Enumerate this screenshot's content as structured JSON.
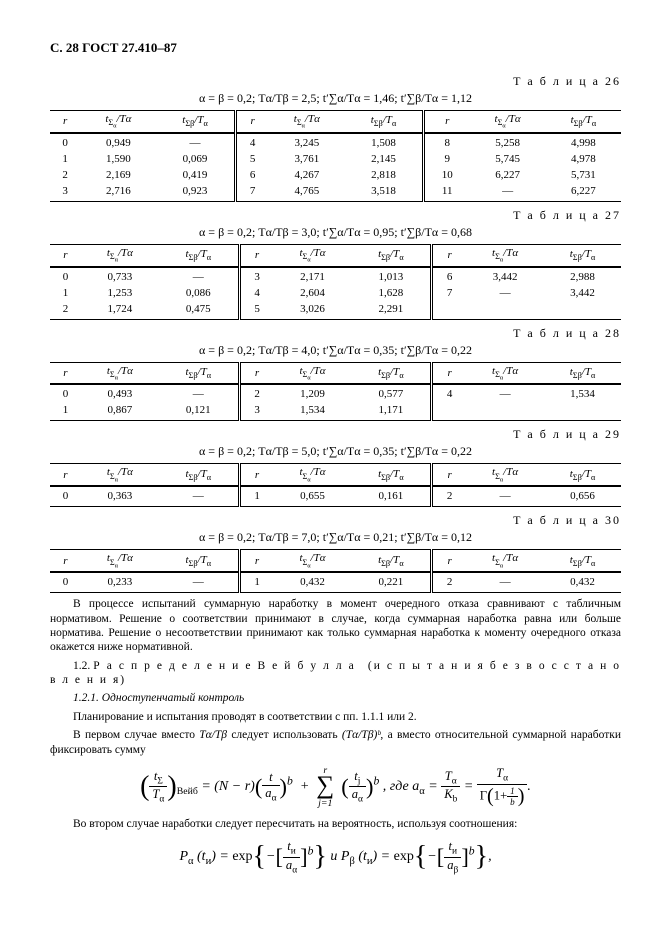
{
  "page_header": "С. 28 ГОСТ 27.410–87",
  "col_headers": {
    "r": "r",
    "a": "t∑α/Tα",
    "b": "t∑β/Tα"
  },
  "tables": [
    {
      "label": "Т а б л и ц а   26",
      "caption": "α = β = 0,2; Tα/Tβ = 2,5; t′∑α/Tα = 1,46; t′∑β/Tα = 1,12",
      "rows": [
        [
          "0",
          "0,949",
          "—",
          "4",
          "3,245",
          "1,508",
          "8",
          "5,258",
          "4,998"
        ],
        [
          "1",
          "1,590",
          "0,069",
          "5",
          "3,761",
          "2,145",
          "9",
          "5,745",
          "4,978"
        ],
        [
          "2",
          "2,169",
          "0,419",
          "6",
          "4,267",
          "2,818",
          "10",
          "6,227",
          "5,731"
        ],
        [
          "3",
          "2,716",
          "0,923",
          "7",
          "4,765",
          "3,518",
          "11",
          "—",
          "6,227"
        ]
      ]
    },
    {
      "label": "Т а б л и ц а   27",
      "caption": "α = β = 0,2; Tα/Tβ = 3,0; t′∑α/Tα = 0,95; t′∑β/Tα = 0,68",
      "rows": [
        [
          "0",
          "0,733",
          "—",
          "3",
          "2,171",
          "1,013",
          "6",
          "3,442",
          "2,988"
        ],
        [
          "1",
          "1,253",
          "0,086",
          "4",
          "2,604",
          "1,628",
          "7",
          "—",
          "3,442"
        ],
        [
          "2",
          "1,724",
          "0,475",
          "5",
          "3,026",
          "2,291",
          "",
          "",
          ""
        ]
      ]
    },
    {
      "label": "Т а б л и ц а   28",
      "caption": "α = β = 0,2; Tα/Tβ = 4,0; t′∑α/Tα = 0,35; t′∑β/Tα = 0,22",
      "rows": [
        [
          "0",
          "0,493",
          "—",
          "2",
          "1,209",
          "0,577",
          "4",
          "—",
          "1,534"
        ],
        [
          "1",
          "0,867",
          "0,121",
          "3",
          "1,534",
          "1,171",
          "",
          "",
          ""
        ]
      ]
    },
    {
      "label": "Т а б л и ц а   29",
      "caption": "α = β = 0,2; Tα/Tβ = 5,0; t′∑α/Tα = 0,35; t′∑β/Tα = 0,22",
      "rows": [
        [
          "0",
          "0,363",
          "—",
          "1",
          "0,655",
          "0,161",
          "2",
          "—",
          "0,656"
        ]
      ]
    },
    {
      "label": "Т а б л и ц а   30",
      "caption": "α = β = 0,2; Tα/Tβ = 7,0; t′∑α/Tα = 0,21; t′∑β/Tα = 0,12",
      "rows": [
        [
          "0",
          "0,233",
          "—",
          "1",
          "0,432",
          "0,221",
          "2",
          "—",
          "0,432"
        ]
      ]
    }
  ],
  "para1": "В процессе испытаний суммарную наработку в момент очередного отказа сравнивают с табличным нормативом. Решение о соответствии принимают в случае, когда суммарная наработка равна или больше норматива. Решение о несоответствии принимают как только суммарная наработка к моменту очередного отказа окажется ниже нормативной.",
  "sec12_num": "1.2.",
  "sec12_a": "Р а с п р е д е л е н и е   В е й б у л л а",
  "sec12_b": "(и с п ы т а н и я   б е з   в о с с т а н о в л е н и я)",
  "sec121": "1.2.1. Одноступенчатый контроль",
  "para2": "Планирование и испытания проводят в соответствии с пп. 1.1.1 или 2.",
  "para3a": "В первом случае вместо  ",
  "para3b": "Tα/Tβ",
  "para3c": "  следует использовать ",
  "para3d": "(Tα/Tβ)ᵇ",
  "para3e": ", а вместо относительной суммарной наработки фиксировать сумму",
  "para4": "Во втором случае наработки следует пересчитать на вероятность, используя соотношения:",
  "formula1_tail": ", где ",
  "formula2_mid": " и  "
}
